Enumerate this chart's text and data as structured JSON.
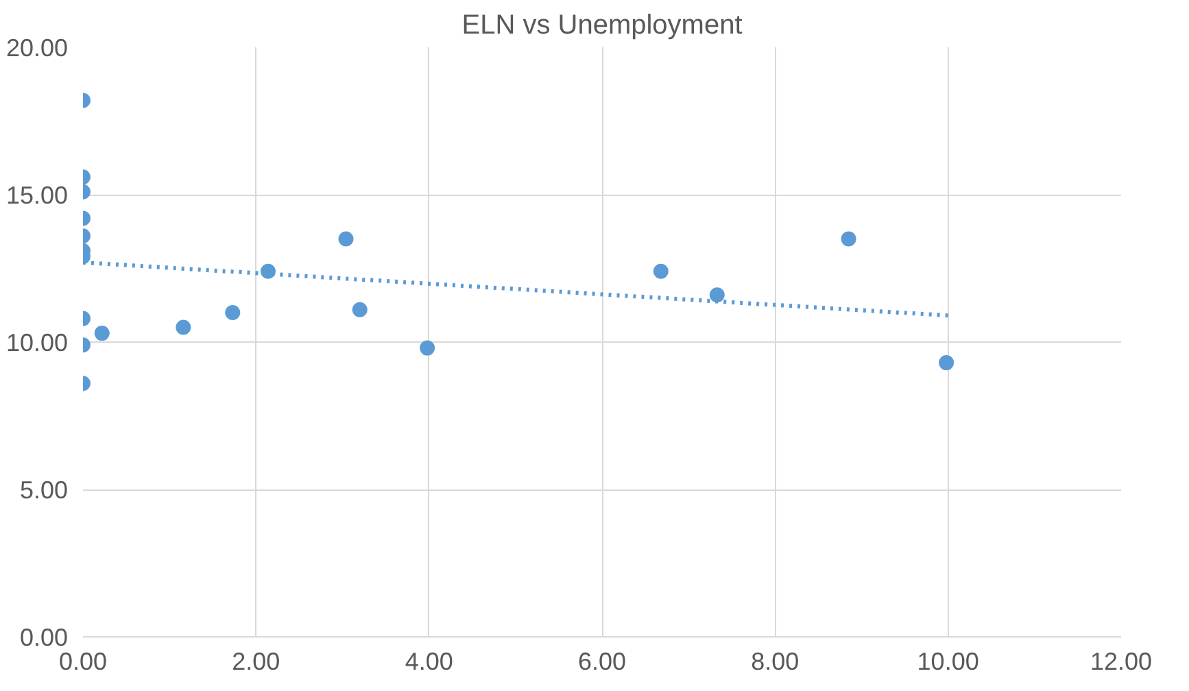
{
  "chart_data": {
    "type": "scatter",
    "title": "ELN vs Unemployment",
    "xlim": [
      0,
      12
    ],
    "xticks": [
      {
        "value": 0,
        "label": "0.00"
      },
      {
        "value": 2,
        "label": "2.00"
      },
      {
        "value": 4,
        "label": "4.00"
      },
      {
        "value": 6,
        "label": "6.00"
      },
      {
        "value": 8,
        "label": "8.00"
      },
      {
        "value": 10,
        "label": "10.00"
      },
      {
        "value": 12,
        "label": "12.00"
      }
    ],
    "ylim": [
      0,
      20
    ],
    "yticks": [
      {
        "value": 0,
        "label": "0.00"
      },
      {
        "value": 5,
        "label": "5.00"
      },
      {
        "value": 10,
        "label": "10.00"
      },
      {
        "value": 15,
        "label": "15.00"
      },
      {
        "value": 20,
        "label": "20.00"
      }
    ],
    "grid": true,
    "series": [
      {
        "color": "#5b9bd5",
        "marker": "circle",
        "x": [
          0,
          0,
          0,
          0,
          0,
          0,
          0,
          0,
          0,
          0,
          0.22,
          1.16,
          1.73,
          2.14,
          3.04,
          3.2,
          3.98,
          6.68,
          7.33,
          8.85,
          9.98
        ],
        "values": [
          18.2,
          15.6,
          15.1,
          14.2,
          13.6,
          13.1,
          12.9,
          10.8,
          9.9,
          8.6,
          10.3,
          10.5,
          11.0,
          12.4,
          13.5,
          11.1,
          9.8,
          12.4,
          11.6,
          13.5,
          9.3
        ]
      },
      {
        "type": "line",
        "color": "#5b9bd5",
        "line_style": "dotted",
        "x": [
          0,
          10
        ],
        "values": [
          12.7,
          10.9
        ]
      }
    ]
  }
}
